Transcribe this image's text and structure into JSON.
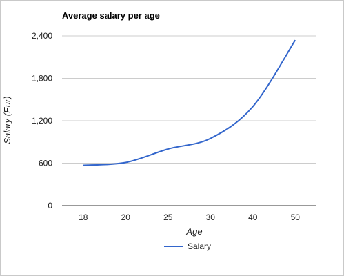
{
  "chart_data": {
    "type": "line",
    "title": "Average salary per age",
    "xlabel": "Age",
    "ylabel": "Salary (Eur)",
    "categories": [
      "18",
      "20",
      "25",
      "30",
      "40",
      "50"
    ],
    "series": [
      {
        "name": "Salary",
        "values": [
          570,
          610,
          800,
          950,
          1400,
          2340
        ],
        "color": "#3366cc"
      }
    ],
    "ylim": [
      0,
      2400
    ],
    "yticks": [
      "0",
      "600",
      "1,200",
      "1,800",
      "2,400"
    ],
    "ytick_values": [
      0,
      600,
      1200,
      1800,
      2400
    ],
    "grid": true,
    "legend_position": "bottom"
  }
}
